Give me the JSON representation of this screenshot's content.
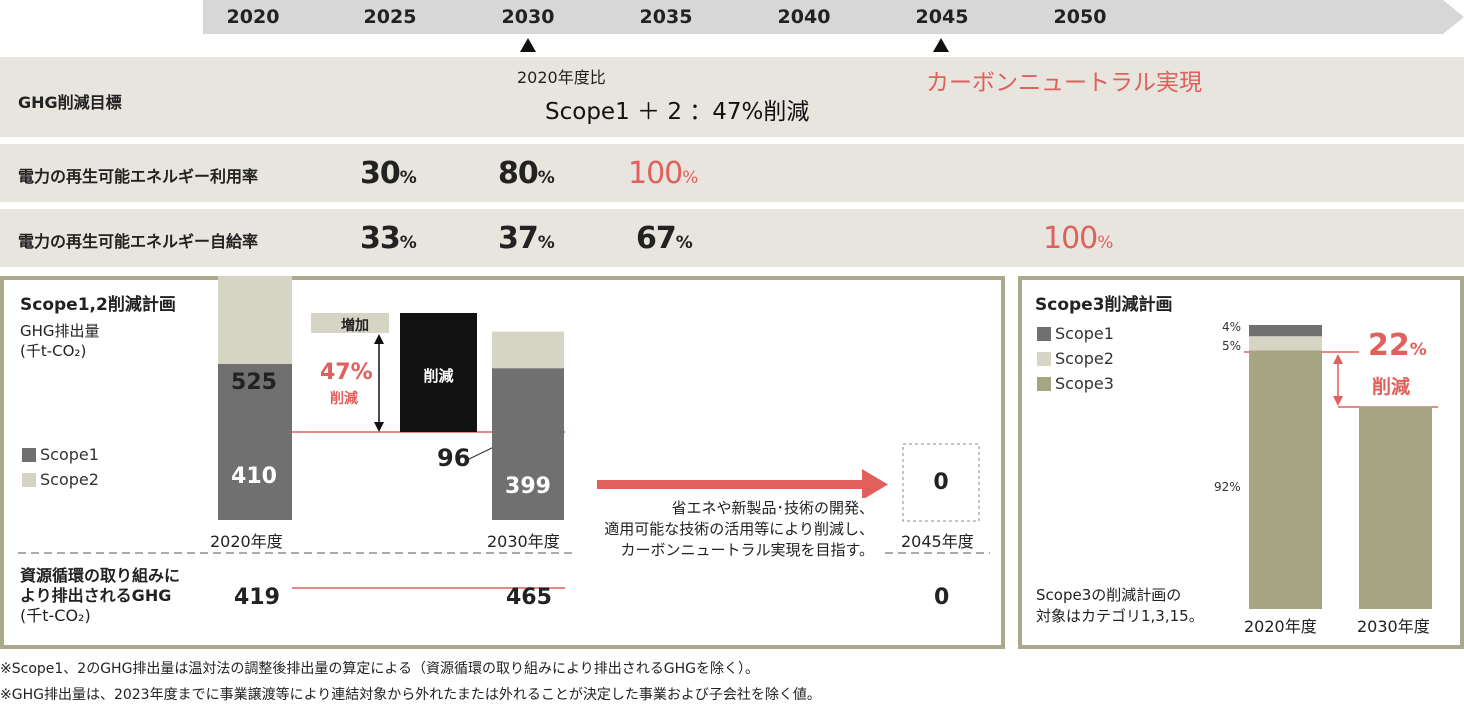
{
  "timeline": {
    "years": [
      "2020",
      "2025",
      "2030",
      "2035",
      "2040",
      "2045",
      "2050"
    ]
  },
  "ghg_target": {
    "label": "GHG削減目標",
    "base_note": "2020年度比",
    "target_text": "Scope1 ＋ 2 ：47%削減",
    "neutral_text": "カーボンニュートラル実現"
  },
  "re_usage": {
    "label": "電力の再生可能エネルギー利用率",
    "values": [
      {
        "year": "2025",
        "num": "30",
        "unit": "%"
      },
      {
        "year": "2030",
        "num": "80",
        "unit": "%"
      },
      {
        "year": "2035",
        "num": "100",
        "unit": "%"
      }
    ]
  },
  "re_self": {
    "label": "電力の再生可能エネルギー自給率",
    "values": [
      {
        "year": "2025",
        "num": "33",
        "unit": "%"
      },
      {
        "year": "2030",
        "num": "37",
        "unit": "%"
      },
      {
        "year": "2035",
        "num": "67",
        "unit": "%"
      },
      {
        "year": "2050",
        "num": "100",
        "unit": "%"
      }
    ]
  },
  "scope12": {
    "title": "Scope1,2削減計画",
    "ylabel_1": "GHG排出量",
    "ylabel_2": "(千t-CO₂)",
    "legend_scope1": "Scope1",
    "legend_scope2": "Scope2",
    "increase_label": "増加",
    "reduction_block_label": "削減",
    "reduction_pct": "47%",
    "reduction_word": "削減",
    "note_96": "96",
    "arrow_text_1": "省エネや新製品･技術の開発、",
    "arrow_text_2": "適用可能な技術の活用等により削減し、",
    "arrow_text_3": "カーボンニュートラル実現を目指す。",
    "zero_value": "0",
    "years": [
      "2020年度",
      "2030年度",
      "2045年度"
    ],
    "resource_label_1": "資源循環の取り組みに",
    "resource_label_2": "より排出されるGHG",
    "resource_label_3": "(千t-CO₂)",
    "resource_values": [
      "419",
      "465",
      "0"
    ]
  },
  "scope3": {
    "title": "Scope3削減計画",
    "legend": [
      "Scope1",
      "Scope2",
      "Scope3"
    ],
    "pct_scope1": "4%",
    "pct_scope2": "5%",
    "pct_scope3": "92%",
    "reduction_num": "22",
    "reduction_unit": "%",
    "reduction_word": "削減",
    "note_1": "Scope3の削減計画の",
    "note_2": "対象はカテゴリ1,3,15。",
    "years": [
      "2020年度",
      "2030年度"
    ]
  },
  "footnotes": [
    "※Scope1、2のGHG排出量は温対法の調整後排出量の算定による（資源循環の取り組みにより排出されるGHGを除く）。",
    "※GHG排出量は、2023年度までに事業譲渡等により連結対象から外れたまたは外れることが決定した事業および子会社を除く値。"
  ],
  "colors": {
    "scope1": "#707070",
    "scope2": "#d6d4c4",
    "scope3": "#a6a582",
    "accent_red": "#e0605c",
    "band": "#e8e5df",
    "panel_border": "#aaa98b"
  },
  "chart_data": [
    {
      "type": "bar",
      "title": "Scope1,2削減計画",
      "ylabel": "GHG排出量 (千t-CO₂)",
      "categories": [
        "2020年度",
        "2030年度",
        "2045年度"
      ],
      "series": [
        {
          "name": "Scope1",
          "values": [
            410,
            399,
            0
          ]
        },
        {
          "name": "Scope2",
          "values": [
            525,
            96,
            0
          ]
        }
      ],
      "annotations": [
        "47% 削減",
        "増加",
        "削減"
      ]
    },
    {
      "type": "bar",
      "title": "Scope3削減計画",
      "categories": [
        "2020年度",
        "2030年度"
      ],
      "series": [
        {
          "name": "Scope1",
          "values": [
            4,
            0
          ]
        },
        {
          "name": "Scope2",
          "values": [
            5,
            0
          ]
        },
        {
          "name": "Scope3",
          "values": [
            92,
            72
          ]
        }
      ],
      "annotations": [
        "22% 削減"
      ]
    }
  ]
}
